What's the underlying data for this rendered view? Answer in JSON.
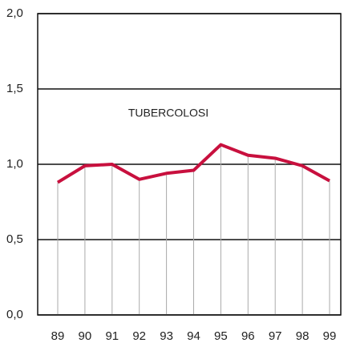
{
  "chart_data": {
    "type": "line",
    "annotation": "TUBERCOLOSI",
    "categories": [
      "89",
      "90",
      "91",
      "92",
      "93",
      "94",
      "95",
      "96",
      "97",
      "98",
      "99"
    ],
    "series": [
      {
        "name": "TUBERCOLOSI",
        "color": "#c8103e",
        "values": [
          0.88,
          0.99,
          1.0,
          0.9,
          0.94,
          0.96,
          1.13,
          1.06,
          1.04,
          0.99,
          0.89
        ]
      }
    ],
    "ylim": [
      0,
      2
    ],
    "yticks": [
      {
        "value": 0,
        "label": "0,0"
      },
      {
        "value": 0.5,
        "label": "0,5"
      },
      {
        "value": 1,
        "label": "1,0"
      },
      {
        "value": 1.5,
        "label": "1,5"
      },
      {
        "value": 2,
        "label": "2,0"
      }
    ],
    "grid": true
  }
}
